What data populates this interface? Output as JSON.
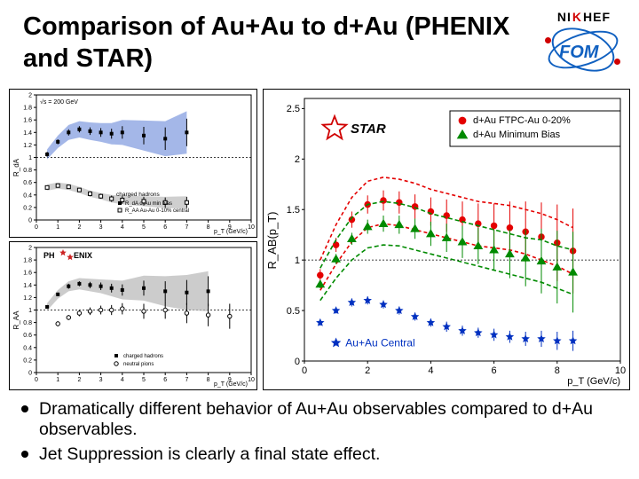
{
  "title": "Comparison of Au+Au to d+Au (PHENIX and STAR)",
  "logos": {
    "nikhef_letters": [
      "N",
      "I",
      "K",
      "H",
      "E",
      "F"
    ],
    "nikhef_red_idx": 2,
    "fom_text": "FOM"
  },
  "bullets": [
    "Dramatically different behavior of Au+Au observables compared to d+Au observables.",
    "Jet Suppression is clearly a final state effect."
  ],
  "phenix_top": {
    "type": "scatter",
    "caption": "√s = 200 GeV",
    "ylabel": "R_dA",
    "xlabel": "p_T (GeV/c)",
    "xlim": [
      0,
      10
    ],
    "ylim": [
      0,
      2
    ],
    "xtick_step": 1,
    "ytick_step": 0.2,
    "legend_title": "charged hadrons",
    "legend": [
      "R_dA  d-Au min bias",
      "R_AA Au-Au 0-10% central"
    ],
    "series": [
      {
        "name": "dAu_band",
        "type": "band",
        "color": "#5a7bd6",
        "opacity": 0.55,
        "x": [
          0.5,
          1,
          1.5,
          2,
          2.5,
          3,
          3.5,
          4,
          5,
          6,
          7
        ],
        "y": [
          1.05,
          1.25,
          1.4,
          1.45,
          1.42,
          1.4,
          1.38,
          1.4,
          1.35,
          1.3,
          1.4
        ],
        "ey": [
          0.08,
          0.1,
          0.12,
          0.13,
          0.14,
          0.15,
          0.17,
          0.2,
          0.24,
          0.28,
          0.34
        ]
      },
      {
        "name": "dAu_points",
        "type": "points",
        "marker": "square-filled",
        "color": "#000",
        "size": 4,
        "x": [
          0.5,
          1,
          1.5,
          2,
          2.5,
          3,
          3.5,
          4,
          5,
          6,
          7
        ],
        "y": [
          1.05,
          1.25,
          1.4,
          1.45,
          1.42,
          1.4,
          1.38,
          1.4,
          1.35,
          1.3,
          1.4
        ],
        "ey": [
          0.04,
          0.04,
          0.05,
          0.05,
          0.06,
          0.07,
          0.08,
          0.1,
          0.14,
          0.18,
          0.22
        ]
      },
      {
        "name": "AuAu_band",
        "type": "band",
        "color": "#bbbbbb",
        "opacity": 0.7,
        "x": [
          0.5,
          1,
          1.5,
          2,
          2.5,
          3,
          3.5,
          4,
          5,
          6,
          7
        ],
        "y": [
          0.52,
          0.55,
          0.53,
          0.48,
          0.42,
          0.38,
          0.34,
          0.32,
          0.3,
          0.28,
          0.28
        ],
        "ey": [
          0.05,
          0.05,
          0.05,
          0.05,
          0.05,
          0.05,
          0.06,
          0.07,
          0.08,
          0.09,
          0.1
        ]
      },
      {
        "name": "AuAu_points",
        "type": "points",
        "marker": "square-open",
        "color": "#000",
        "size": 4,
        "x": [
          0.5,
          1,
          1.5,
          2,
          2.5,
          3,
          3.5,
          4,
          5,
          6,
          7
        ],
        "y": [
          0.52,
          0.55,
          0.53,
          0.48,
          0.42,
          0.38,
          0.34,
          0.32,
          0.3,
          0.28,
          0.28
        ],
        "ey": [
          0.03,
          0.03,
          0.03,
          0.03,
          0.04,
          0.04,
          0.05,
          0.06,
          0.07,
          0.08,
          0.09
        ]
      }
    ],
    "colors": {
      "axis": "#000000",
      "text": "#000000",
      "grid": "#bbbbbb"
    },
    "fontsize": 7
  },
  "phenix_bottom": {
    "type": "scatter",
    "badge": "PH ENIX",
    "ylabel": "R_AA",
    "xlabel": "p_T (GeV/c)",
    "xlim": [
      0,
      10
    ],
    "ylim": [
      0,
      2
    ],
    "xtick_step": 1,
    "ytick_step": 0.2,
    "legend": [
      "charged hadrons",
      "neutral pions"
    ],
    "series": [
      {
        "name": "charged_band",
        "type": "band",
        "color": "#bbbbbb",
        "opacity": 0.75,
        "x": [
          0.5,
          1,
          1.5,
          2,
          2.5,
          3,
          3.5,
          4,
          5,
          6,
          7,
          8
        ],
        "y": [
          1.05,
          1.25,
          1.38,
          1.42,
          1.4,
          1.38,
          1.35,
          1.32,
          1.35,
          1.3,
          1.28,
          1.3
        ],
        "ey": [
          0.06,
          0.07,
          0.08,
          0.09,
          0.1,
          0.11,
          0.13,
          0.15,
          0.2,
          0.24,
          0.28,
          0.32
        ]
      },
      {
        "name": "charged",
        "type": "points",
        "marker": "square-filled",
        "color": "#000",
        "size": 4,
        "x": [
          0.5,
          1,
          1.5,
          2,
          2.5,
          3,
          3.5,
          4,
          5,
          6,
          7,
          8
        ],
        "y": [
          1.05,
          1.25,
          1.38,
          1.42,
          1.4,
          1.38,
          1.35,
          1.32,
          1.35,
          1.3,
          1.28,
          1.3
        ],
        "ey": [
          0.03,
          0.03,
          0.04,
          0.04,
          0.05,
          0.06,
          0.07,
          0.09,
          0.12,
          0.16,
          0.2,
          0.24
        ]
      },
      {
        "name": "pi0",
        "type": "points",
        "marker": "circle-open",
        "color": "#000",
        "size": 4,
        "x": [
          1,
          1.5,
          2,
          2.5,
          3,
          3.5,
          4,
          5,
          6,
          7,
          8,
          9
        ],
        "y": [
          0.78,
          0.88,
          0.95,
          0.98,
          1.0,
          1.0,
          1.02,
          0.98,
          1.0,
          0.95,
          0.92,
          0.9
        ],
        "ey": [
          0.04,
          0.04,
          0.05,
          0.06,
          0.07,
          0.08,
          0.09,
          0.12,
          0.14,
          0.16,
          0.18,
          0.2
        ]
      }
    ],
    "colors": {
      "axis": "#000000",
      "text": "#000000"
    },
    "fontsize": 7
  },
  "star": {
    "type": "scatter",
    "badge": "STAR",
    "ylabel": "R_AB(p_T)",
    "xlabel": "p_T (GeV/c)",
    "xlim": [
      0,
      10
    ],
    "ylim": [
      0,
      2.6
    ],
    "xtick_step": 2,
    "ytick_step": 0.5,
    "legend": [
      {
        "label": "d+Au FTPC-Au 0-20%",
        "marker": "circle",
        "color": "#e40000"
      },
      {
        "label": "d+Au Minimum Bias",
        "marker": "triangle",
        "color": "#008a00"
      }
    ],
    "auau_label": "Au+Au Central",
    "series": [
      {
        "name": "dAu_ftpc_band_upper",
        "type": "line",
        "color": "#e40000",
        "dash": "4,3",
        "width": 1.6,
        "x": [
          0.5,
          1,
          1.5,
          2,
          2.5,
          3,
          3.5,
          4,
          4.5,
          5,
          5.5,
          6,
          6.5,
          7,
          7.5,
          8,
          8.5
        ],
        "y": [
          1.0,
          1.35,
          1.62,
          1.78,
          1.82,
          1.8,
          1.76,
          1.7,
          1.66,
          1.62,
          1.58,
          1.56,
          1.54,
          1.5,
          1.46,
          1.4,
          1.32
        ]
      },
      {
        "name": "dAu_ftpc_band_lower",
        "type": "line",
        "color": "#e40000",
        "dash": "4,3",
        "width": 1.6,
        "x": [
          0.5,
          1,
          1.5,
          2,
          2.5,
          3,
          3.5,
          4,
          4.5,
          5,
          5.5,
          6,
          6.5,
          7,
          7.5,
          8,
          8.5
        ],
        "y": [
          0.7,
          0.96,
          1.18,
          1.32,
          1.36,
          1.34,
          1.3,
          1.26,
          1.22,
          1.18,
          1.14,
          1.12,
          1.1,
          1.06,
          1.0,
          0.94,
          0.86
        ]
      },
      {
        "name": "dAu_ftpc",
        "type": "points",
        "marker": "circle",
        "color": "#e40000",
        "size": 6,
        "x": [
          0.5,
          1,
          1.5,
          2,
          2.5,
          3,
          3.5,
          4,
          4.5,
          5,
          5.5,
          6,
          6.5,
          7,
          7.5,
          8,
          8.5
        ],
        "y": [
          0.85,
          1.15,
          1.4,
          1.55,
          1.59,
          1.57,
          1.53,
          1.48,
          1.44,
          1.4,
          1.36,
          1.34,
          1.32,
          1.28,
          1.23,
          1.17,
          1.09
        ],
        "ey": [
          0.06,
          0.07,
          0.08,
          0.09,
          0.1,
          0.11,
          0.12,
          0.14,
          0.16,
          0.18,
          0.2,
          0.22,
          0.26,
          0.3,
          0.34,
          0.38,
          0.42
        ]
      },
      {
        "name": "dAu_mb_band_upper",
        "type": "line",
        "color": "#008a00",
        "dash": "5,3",
        "width": 1.6,
        "x": [
          0.5,
          1,
          1.5,
          2,
          2.5,
          3,
          3.5,
          4,
          4.5,
          5,
          5.5,
          6,
          6.5,
          7,
          7.5,
          8,
          8.5
        ],
        "y": [
          0.92,
          1.2,
          1.42,
          1.55,
          1.58,
          1.56,
          1.52,
          1.46,
          1.42,
          1.38,
          1.34,
          1.3,
          1.26,
          1.22,
          1.2,
          1.14,
          1.1
        ]
      },
      {
        "name": "dAu_mb_band_lower",
        "type": "line",
        "color": "#008a00",
        "dash": "5,3",
        "width": 1.6,
        "x": [
          0.5,
          1,
          1.5,
          2,
          2.5,
          3,
          3.5,
          4,
          4.5,
          5,
          5.5,
          6,
          6.5,
          7,
          7.5,
          8,
          8.5
        ],
        "y": [
          0.6,
          0.82,
          1.0,
          1.12,
          1.15,
          1.14,
          1.1,
          1.06,
          1.02,
          0.98,
          0.94,
          0.9,
          0.86,
          0.82,
          0.78,
          0.72,
          0.66
        ]
      },
      {
        "name": "dAu_mb",
        "type": "points",
        "marker": "triangle",
        "color": "#008a00",
        "size": 6,
        "x": [
          0.5,
          1,
          1.5,
          2,
          2.5,
          3,
          3.5,
          4,
          4.5,
          5,
          5.5,
          6,
          6.5,
          7,
          7.5,
          8,
          8.5
        ],
        "y": [
          0.76,
          1.01,
          1.21,
          1.33,
          1.36,
          1.35,
          1.31,
          1.26,
          1.22,
          1.18,
          1.14,
          1.1,
          1.06,
          1.02,
          0.99,
          0.93,
          0.88
        ],
        "ey": [
          0.04,
          0.05,
          0.06,
          0.07,
          0.08,
          0.09,
          0.1,
          0.12,
          0.14,
          0.16,
          0.18,
          0.2,
          0.24,
          0.28,
          0.32,
          0.36,
          0.4
        ]
      },
      {
        "name": "auau",
        "type": "points",
        "marker": "star",
        "color": "#0030c0",
        "size": 5,
        "x": [
          0.5,
          1,
          1.5,
          2,
          2.5,
          3,
          3.5,
          4,
          4.5,
          5,
          5.5,
          6,
          6.5,
          7,
          7.5,
          8,
          8.5
        ],
        "y": [
          0.38,
          0.5,
          0.58,
          0.6,
          0.56,
          0.5,
          0.44,
          0.38,
          0.34,
          0.3,
          0.28,
          0.26,
          0.24,
          0.22,
          0.22,
          0.2,
          0.2
        ],
        "ey": [
          0.03,
          0.03,
          0.04,
          0.04,
          0.04,
          0.04,
          0.04,
          0.04,
          0.05,
          0.05,
          0.05,
          0.06,
          0.06,
          0.07,
          0.08,
          0.09,
          0.1
        ]
      }
    ],
    "colors": {
      "axis": "#000000",
      "text": "#000000",
      "ref_line": "#000000"
    },
    "fontsize": 11
  }
}
